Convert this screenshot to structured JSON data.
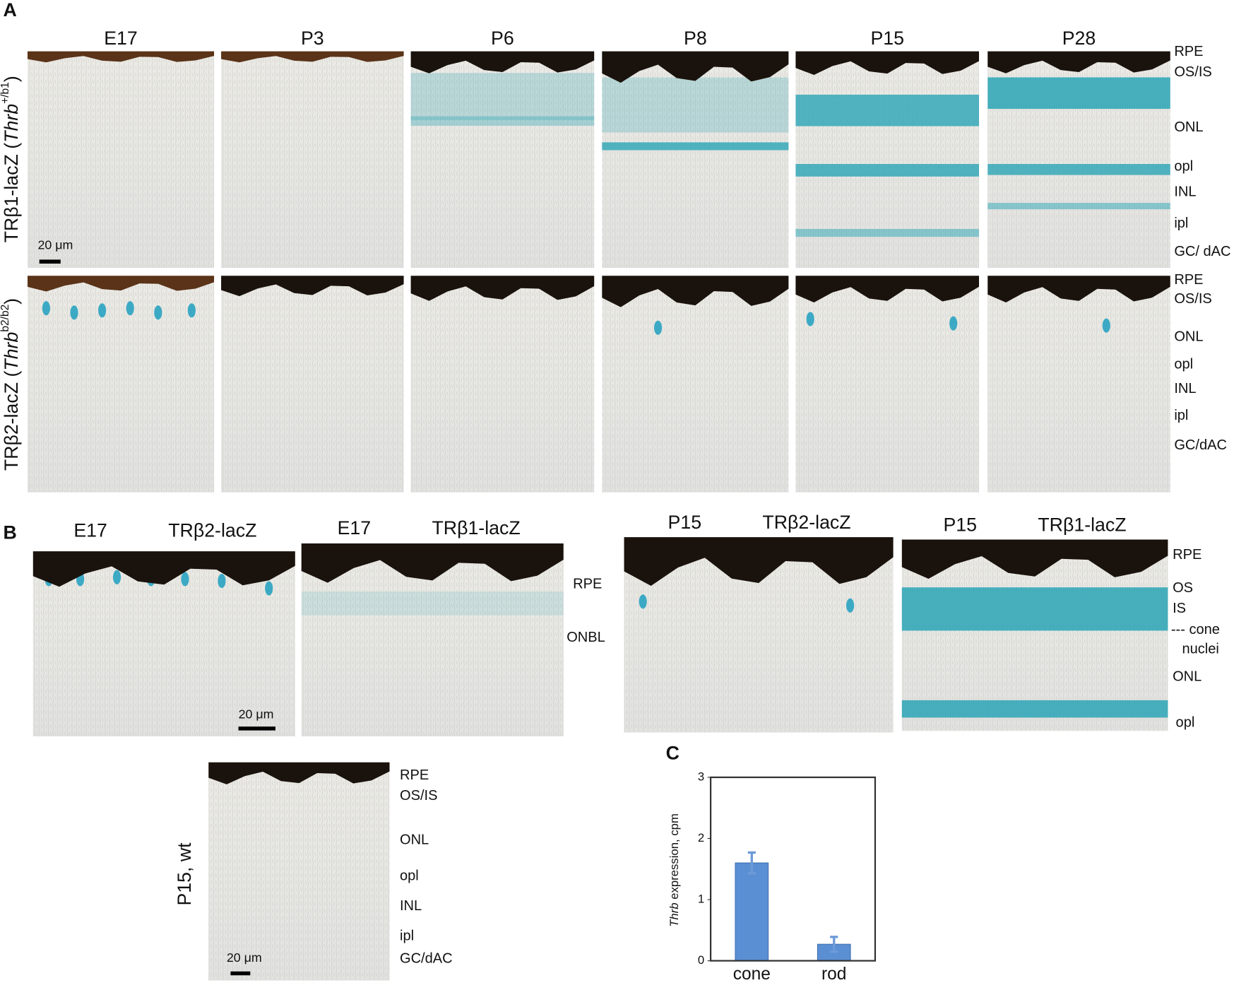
{
  "panel_a": {
    "label": "A",
    "columns": [
      "E17",
      "P3",
      "P6",
      "P8",
      "P15",
      "P28"
    ],
    "row_labels": [
      {
        "prefix": "TRβ1-lacZ  (",
        "gene": "Thrb",
        "allele": "+/b1",
        "suffix": ")"
      },
      {
        "prefix": "TRβ2-lacZ  (",
        "gene": "Thrb",
        "allele": "b2/b2",
        "suffix": ")"
      }
    ],
    "layers_top": [
      "RPE",
      "OS/IS",
      "ONL",
      "opl",
      "INL",
      "ipl",
      "GC/ dAC"
    ],
    "layers_bottom": [
      "RPE",
      "OS/IS",
      "ONL",
      "opl",
      "INL",
      "ipl",
      "GC/dAC"
    ],
    "scale_bar": "20 μm"
  },
  "panel_b": {
    "label": "B",
    "headers": [
      "E17",
      "TRβ2-lacZ",
      "E17",
      "TRβ1-lacZ",
      "P15",
      "TRβ2-lacZ",
      "P15",
      "TRβ1-lacZ"
    ],
    "layers_e17": [
      "RPE",
      "ONBL"
    ],
    "layers_p15": [
      "RPE",
      "OS",
      "IS",
      "--- cone",
      "nuclei",
      "ONL",
      "opl"
    ],
    "scale_bar": "20 μm",
    "wt_label": "P15,  wt",
    "layers_wt": [
      "RPE",
      "OS/IS",
      "ONL",
      "opl",
      "INL",
      "ipl",
      "GC/dAC"
    ],
    "wt_scale_bar": "20 μm"
  },
  "panel_c": {
    "label": "C"
  },
  "chart_data": {
    "type": "bar",
    "ylabel_italic": "Thrb",
    "ylabel_rest": " expression, cpm",
    "categories": [
      "cone",
      "rod"
    ],
    "values": [
      1.6,
      0.27
    ],
    "errors": [
      0.17,
      0.12
    ],
    "color": "#5b8fd4",
    "ylim": [
      0,
      3
    ],
    "yticks": [
      0,
      1,
      2,
      3
    ]
  }
}
